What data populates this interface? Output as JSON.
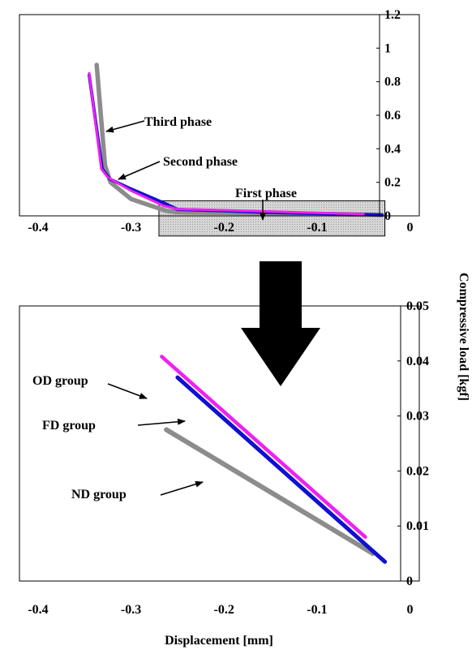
{
  "chart_data": [
    {
      "type": "line",
      "title": "",
      "xlim": [
        -0.4,
        0
      ],
      "ylim": [
        0,
        1.2
      ],
      "x_ticks": [
        "-0.4",
        "-0.3",
        "-0.2",
        "-0.1",
        "0"
      ],
      "y_ticks": [
        "0",
        "0.2",
        "0.4",
        "0.6",
        "0.8",
        "1",
        "1.2"
      ],
      "grid": false,
      "legend": "none",
      "series": [
        {
          "color": "#8c8c8c",
          "x": [
            -0.03,
            -0.08,
            -0.15,
            -0.2,
            -0.25,
            -0.262,
            -0.3,
            -0.322,
            -0.328,
            -0.337
          ],
          "y": [
            0.005,
            0.01,
            0.015,
            0.018,
            0.022,
            0.03,
            0.1,
            0.2,
            0.3,
            0.9
          ]
        },
        {
          "color": "#1010d0",
          "x": [
            -0.03,
            -0.08,
            -0.15,
            -0.2,
            -0.25,
            -0.262,
            -0.3,
            -0.323,
            -0.331,
            -0.345
          ],
          "y": [
            0.005,
            0.012,
            0.02,
            0.03,
            0.038,
            0.07,
            0.16,
            0.22,
            0.28,
            0.84
          ]
        },
        {
          "color": "#ee22ee",
          "x": [
            -0.05,
            -0.1,
            -0.15,
            -0.2,
            -0.25,
            -0.265,
            -0.3,
            -0.325,
            -0.332,
            -0.345
          ],
          "y": [
            0.01,
            0.018,
            0.026,
            0.034,
            0.04,
            0.06,
            0.15,
            0.23,
            0.28,
            0.85
          ]
        }
      ],
      "annotations": [
        {
          "text": "Third phase",
          "target": [
            -0.325,
            0.5
          ]
        },
        {
          "text": "Second phase",
          "target": [
            -0.32,
            0.22
          ]
        },
        {
          "text": "First phase",
          "target": [
            -0.16,
            0.01
          ]
        }
      ],
      "highlight_box": {
        "x": [
          -0.27,
          -0.027
        ],
        "y": [
          -0.12,
          0.09
        ]
      }
    },
    {
      "type": "line",
      "title": "",
      "xlim": [
        -0.4,
        0
      ],
      "ylim": [
        0,
        0.05
      ],
      "x_ticks": [
        "-0.4",
        "-0.3",
        "-0.2",
        "-0.1",
        "0"
      ],
      "y_ticks": [
        "0",
        "0.01",
        "0.02",
        "0.03",
        "0.04",
        "0.05"
      ],
      "grid": false,
      "legend": "none",
      "series": [
        {
          "color": "#8c8c8c",
          "x": [
            -0.262,
            -0.04
          ],
          "y": [
            0.0275,
            0.005
          ]
        },
        {
          "color": "#1010d0",
          "x": [
            -0.25,
            -0.027
          ],
          "y": [
            0.037,
            0.0035
          ]
        },
        {
          "color": "#ee22ee",
          "x": [
            -0.267,
            -0.048
          ],
          "y": [
            0.0408,
            0.008
          ]
        }
      ],
      "annotations": [
        {
          "text": "OD group",
          "target": [
            -0.267,
            0.0408
          ]
        },
        {
          "text": "FD group",
          "target": [
            -0.223,
            0.0355
          ]
        },
        {
          "text": "ND group",
          "target": [
            -0.205,
            0.0247
          ]
        }
      ]
    }
  ],
  "xlabel": "Displacement [mm]",
  "ylabel": "Compressive load [kgf]"
}
